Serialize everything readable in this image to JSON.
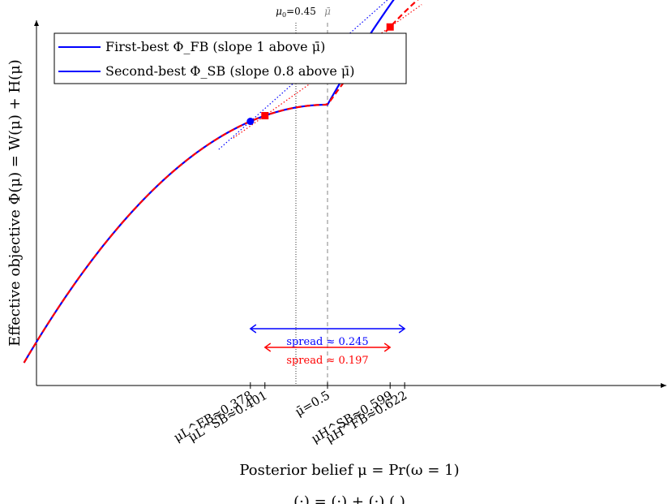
{
  "chart_data": {
    "type": "line",
    "title": "",
    "xlabel": "Posterior belief μ = Pr(ω = 1)",
    "ylabel": "Effective objective Φ(μ) = W(μ) + H(μ)",
    "grid": false,
    "legend_position": "top-left",
    "xlim": [
      0.0,
      1.0
    ],
    "x_range_plotted": [
      0.02,
      0.98
    ],
    "reference_lines": {
      "prior": {
        "x": 0.45,
        "label": "μ0=0.45"
      },
      "threshold": {
        "x": 0.5,
        "label": "μ̄"
      }
    },
    "legend": [
      {
        "name": "First-best Φ_FB (slope 1 above μ̄)",
        "color": "#0000ff",
        "style": "solid"
      },
      {
        "name": "Second-best Φ_SB (slope 0.8 above μ̄)",
        "color": "#ff0000",
        "style": "dashed"
      }
    ],
    "series": [
      {
        "name": "First-best Φ_FB (slope 1 above μ̄)",
        "color": "#0000ff",
        "style": "solid",
        "formula": "x - x^2 for x <= 0.5; 0.25 + 1.0*(x-0.5) - 1.0*(x-0.5)^2 for x > 0.5"
      },
      {
        "name": "Second-best Φ_SB (slope 0.8 above μ̄)",
        "color": "#ff0000",
        "style": "dashed",
        "formula": "x - x^2 for x <= 0.5; 0.25 + 0.8*(x-0.5) - 1.0*(x-0.5)^2 for x > 0.5"
      }
    ],
    "points": [
      {
        "series": "FB",
        "x": 0.378,
        "color": "#0000ff",
        "marker": "circle"
      },
      {
        "series": "FB",
        "x": 0.622,
        "color": "#0000ff",
        "marker": "circle"
      },
      {
        "series": "SB",
        "x": 0.401,
        "color": "#ff0000",
        "marker": "square"
      },
      {
        "series": "SB",
        "x": 0.599,
        "color": "#ff0000",
        "marker": "square"
      }
    ],
    "spreads": [
      {
        "from": 0.378,
        "to": 0.622,
        "label": "spread ≈ 0.245",
        "color": "#0000ff"
      },
      {
        "from": 0.401,
        "to": 0.599,
        "label": "spread ≈ 0.197",
        "color": "#ff0000"
      }
    ],
    "tick_labels": [
      {
        "x": 0.378,
        "label": "μL^FB≈0.378"
      },
      {
        "x": 0.401,
        "label": "μL^SB≈0.401"
      },
      {
        "x": 0.5,
        "label": "μ̄=0.5"
      },
      {
        "x": 0.599,
        "label": "μH^SB≈0.599"
      },
      {
        "x": 0.622,
        "label": "μH^FB≈0.622"
      }
    ],
    "caption_fragment": "(·) = (·) + (·) ( )"
  }
}
